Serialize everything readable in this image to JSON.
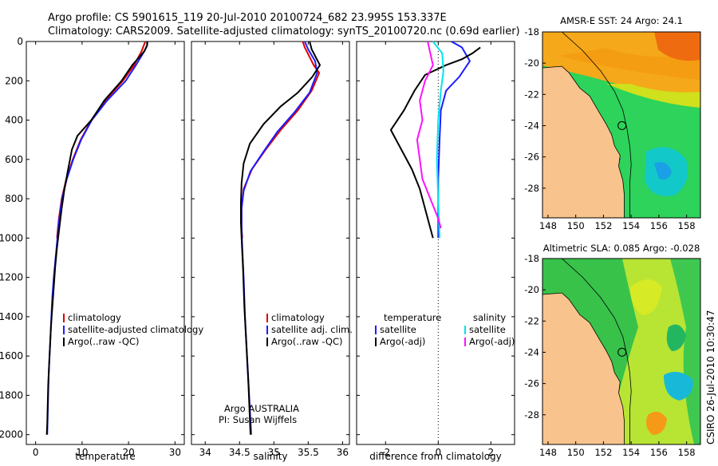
{
  "figure": {
    "title_line1": "Argo profile: CS 5901615_119 20-Jul-2010 20100724_682 23.995S 153.337E",
    "title_line2": "Climatology: CARS2009. Satellite-adjusted climatology: synTS_20100720.nc (0.69d earlier)",
    "side_label": "CSIRO 26-Jul-2010 10:30:47",
    "attribution_line1": "Argo AUSTRALIA",
    "attribution_line2": "PI: Susan Wijffels"
  },
  "colors": {
    "climatology": "#e00000",
    "satellite": "#1c1cff",
    "argo": "#000000",
    "cyan": "#00e5ee",
    "magenta": "#ff10ff",
    "land": "#f8c38c"
  },
  "chart_data": [
    {
      "type": "line",
      "xlabel": "temperature",
      "ylim": [
        0,
        2050
      ],
      "y_inverted": true,
      "xlim": [
        -2,
        32
      ],
      "yticks": [
        0,
        200,
        400,
        600,
        800,
        1000,
        1200,
        1400,
        1600,
        1800,
        2000
      ],
      "xticks": [
        0,
        10,
        20,
        30
      ],
      "legend": [
        "climatology",
        "satellite-adjusted climatology",
        "Argo(..raw -QC)"
      ],
      "legend_position": "lower-right",
      "series": [
        {
          "name": "climatology",
          "color": "climatology",
          "points": [
            [
              23.6,
              0
            ],
            [
              23.3,
              20
            ],
            [
              22.8,
              50
            ],
            [
              21.2,
              120
            ],
            [
              18.8,
              200
            ],
            [
              15.0,
              300
            ],
            [
              12.0,
              400
            ],
            [
              9.7,
              500
            ],
            [
              8.0,
              600
            ],
            [
              6.6,
              700
            ],
            [
              5.6,
              800
            ],
            [
              5.0,
              900
            ],
            [
              4.6,
              1000
            ]
          ]
        },
        {
          "name": "satellite-adjusted climatology",
          "color": "satellite",
          "points": [
            [
              24.1,
              0
            ],
            [
              24.0,
              20
            ],
            [
              23.4,
              50
            ],
            [
              21.6,
              120
            ],
            [
              19.4,
              200
            ],
            [
              15.4,
              300
            ],
            [
              12.1,
              400
            ],
            [
              9.8,
              500
            ],
            [
              8.1,
              600
            ],
            [
              6.7,
              700
            ],
            [
              5.7,
              800
            ],
            [
              5.1,
              900
            ],
            [
              4.7,
              1000
            ],
            [
              4.3,
              1100
            ],
            [
              3.9,
              1200
            ],
            [
              3.6,
              1300
            ],
            [
              3.4,
              1400
            ],
            [
              3.2,
              1500
            ],
            [
              3.0,
              1600
            ],
            [
              2.8,
              1700
            ],
            [
              2.7,
              1800
            ],
            [
              2.6,
              1900
            ],
            [
              2.5,
              2000
            ]
          ]
        },
        {
          "name": "Argo(..raw -QC)",
          "color": "argo",
          "points": [
            [
              24.0,
              0
            ],
            [
              24.0,
              20
            ],
            [
              23.4,
              50
            ],
            [
              20.8,
              120
            ],
            [
              18.5,
              200
            ],
            [
              14.8,
              300
            ],
            [
              12.0,
              400
            ],
            [
              9.0,
              480
            ],
            [
              7.8,
              550
            ],
            [
              7.0,
              650
            ],
            [
              6.2,
              750
            ],
            [
              5.6,
              850
            ],
            [
              5.1,
              950
            ],
            [
              4.6,
              1050
            ],
            [
              4.2,
              1150
            ],
            [
              3.9,
              1250
            ],
            [
              3.6,
              1350
            ],
            [
              3.3,
              1450
            ],
            [
              3.1,
              1550
            ],
            [
              2.9,
              1650
            ],
            [
              2.7,
              1750
            ],
            [
              2.6,
              1850
            ],
            [
              2.5,
              1950
            ],
            [
              2.4,
              2000
            ]
          ]
        }
      ]
    },
    {
      "type": "line",
      "xlabel": "salinity",
      "ylim": [
        0,
        2050
      ],
      "y_inverted": true,
      "xlim": [
        33.8,
        36.1
      ],
      "xticks": [
        34,
        34.5,
        35,
        35.5,
        36
      ],
      "legend": [
        "climatology",
        "satellite adj. clim.",
        "Argo(..raw -QC)"
      ],
      "legend_position": "lower-right",
      "series": [
        {
          "name": "climatology",
          "color": "climatology",
          "points": [
            [
              35.42,
              0
            ],
            [
              35.45,
              30
            ],
            [
              35.58,
              120
            ],
            [
              35.66,
              160
            ],
            [
              35.55,
              250
            ],
            [
              35.35,
              350
            ],
            [
              35.1,
              450
            ],
            [
              34.88,
              550
            ],
            [
              34.68,
              650
            ],
            [
              34.56,
              750
            ],
            [
              34.53,
              850
            ],
            [
              34.53,
              950
            ],
            [
              34.54,
              1000
            ]
          ]
        },
        {
          "name": "satellite adj. clim.",
          "color": "satellite",
          "points": [
            [
              35.45,
              0
            ],
            [
              35.5,
              40
            ],
            [
              35.6,
              100
            ],
            [
              35.63,
              160
            ],
            [
              35.52,
              260
            ],
            [
              35.3,
              360
            ],
            [
              35.05,
              460
            ],
            [
              34.85,
              560
            ],
            [
              34.66,
              660
            ],
            [
              34.56,
              760
            ],
            [
              34.53,
              850
            ],
            [
              34.53,
              950
            ],
            [
              34.54,
              1050
            ],
            [
              34.56,
              1200
            ],
            [
              34.58,
              1400
            ],
            [
              34.61,
              1600
            ],
            [
              34.64,
              1800
            ],
            [
              34.67,
              2000
            ]
          ]
        },
        {
          "name": "Argo(..raw -QC)",
          "color": "argo",
          "points": [
            [
              35.52,
              0
            ],
            [
              35.55,
              40
            ],
            [
              35.67,
              120
            ],
            [
              35.56,
              180
            ],
            [
              35.35,
              260
            ],
            [
              35.1,
              330
            ],
            [
              34.85,
              420
            ],
            [
              34.65,
              520
            ],
            [
              34.56,
              620
            ],
            [
              34.53,
              720
            ],
            [
              34.52,
              820
            ],
            [
              34.52,
              920
            ],
            [
              34.53,
              1000
            ],
            [
              34.55,
              1150
            ],
            [
              34.57,
              1350
            ],
            [
              34.6,
              1550
            ],
            [
              34.63,
              1750
            ],
            [
              34.66,
              2000
            ]
          ]
        }
      ]
    },
    {
      "type": "line",
      "xlabel": "difference from climatology",
      "ylim": [
        0,
        2050
      ],
      "y_inverted": true,
      "xlim": [
        -3.1,
        2.9
      ],
      "xticks": [
        -2,
        0,
        2
      ],
      "zero_line": "dotted",
      "legend_groups": [
        {
          "title": "temperature",
          "entries": [
            "satellite",
            "Argo(-adj)"
          ]
        },
        {
          "title": "salinity",
          "entries": [
            "satellite",
            "Argo(-adj)"
          ]
        }
      ],
      "series": [
        {
          "name": "temperature satellite",
          "color": "satellite",
          "points": [
            [
              0.5,
              0
            ],
            [
              0.9,
              30
            ],
            [
              1.2,
              100
            ],
            [
              0.8,
              180
            ],
            [
              0.3,
              250
            ],
            [
              0.1,
              350
            ],
            [
              0.05,
              500
            ],
            [
              0.0,
              700
            ],
            [
              0.0,
              900
            ],
            [
              0.0,
              1000
            ]
          ]
        },
        {
          "name": "temperature Argo(-adj)",
          "color": "argo",
          "points": [
            [
              1.6,
              30
            ],
            [
              1.3,
              60
            ],
            [
              0.9,
              90
            ],
            [
              0.3,
              120
            ],
            [
              -0.5,
              170
            ],
            [
              -0.9,
              250
            ],
            [
              -1.3,
              350
            ],
            [
              -1.8,
              450
            ],
            [
              -1.4,
              550
            ],
            [
              -1.0,
              650
            ],
            [
              -0.7,
              750
            ],
            [
              -0.5,
              850
            ],
            [
              -0.3,
              950
            ],
            [
              -0.2,
              1000
            ]
          ]
        },
        {
          "name": "salinity satellite",
          "color": "cyan",
          "points": [
            [
              -0.2,
              0
            ],
            [
              0.15,
              60
            ],
            [
              0.2,
              150
            ],
            [
              0.1,
              250
            ],
            [
              0.0,
              400
            ],
            [
              -0.05,
              600
            ],
            [
              0.0,
              800
            ],
            [
              0.05,
              1000
            ]
          ]
        },
        {
          "name": "salinity Argo(-adj)",
          "color": "magenta",
          "points": [
            [
              -0.4,
              0
            ],
            [
              -0.3,
              60
            ],
            [
              -0.2,
              120
            ],
            [
              -0.5,
              200
            ],
            [
              -0.7,
              300
            ],
            [
              -0.6,
              400
            ],
            [
              -0.8,
              500
            ],
            [
              -0.7,
              600
            ],
            [
              -0.6,
              700
            ],
            [
              -0.3,
              800
            ],
            [
              0.0,
              900
            ],
            [
              0.1,
              950
            ]
          ]
        }
      ]
    },
    {
      "type": "heatmap",
      "title": "AMSR-E SST: 24 Argo: 24.1",
      "xlim": [
        147.6,
        159.0
      ],
      "ylim": [
        -29.9,
        -18.0
      ],
      "xticks": [
        148,
        150,
        152,
        154,
        156,
        158
      ],
      "yticks": [
        -18,
        -20,
        -22,
        -24,
        -26,
        -28
      ],
      "marker": {
        "lon": 153.337,
        "lat": -23.995
      },
      "colormap": "jet"
    },
    {
      "type": "heatmap",
      "title": "Altimetric SLA: 0.085 Argo: -0.028",
      "xlim": [
        147.6,
        159.0
      ],
      "ylim": [
        -29.9,
        -18.0
      ],
      "xticks": [
        148,
        150,
        152,
        154,
        156,
        158
      ],
      "yticks": [
        -18,
        -20,
        -22,
        -24,
        -26,
        -28
      ],
      "marker": {
        "lon": 153.337,
        "lat": -23.995
      },
      "colormap": "jet"
    }
  ]
}
